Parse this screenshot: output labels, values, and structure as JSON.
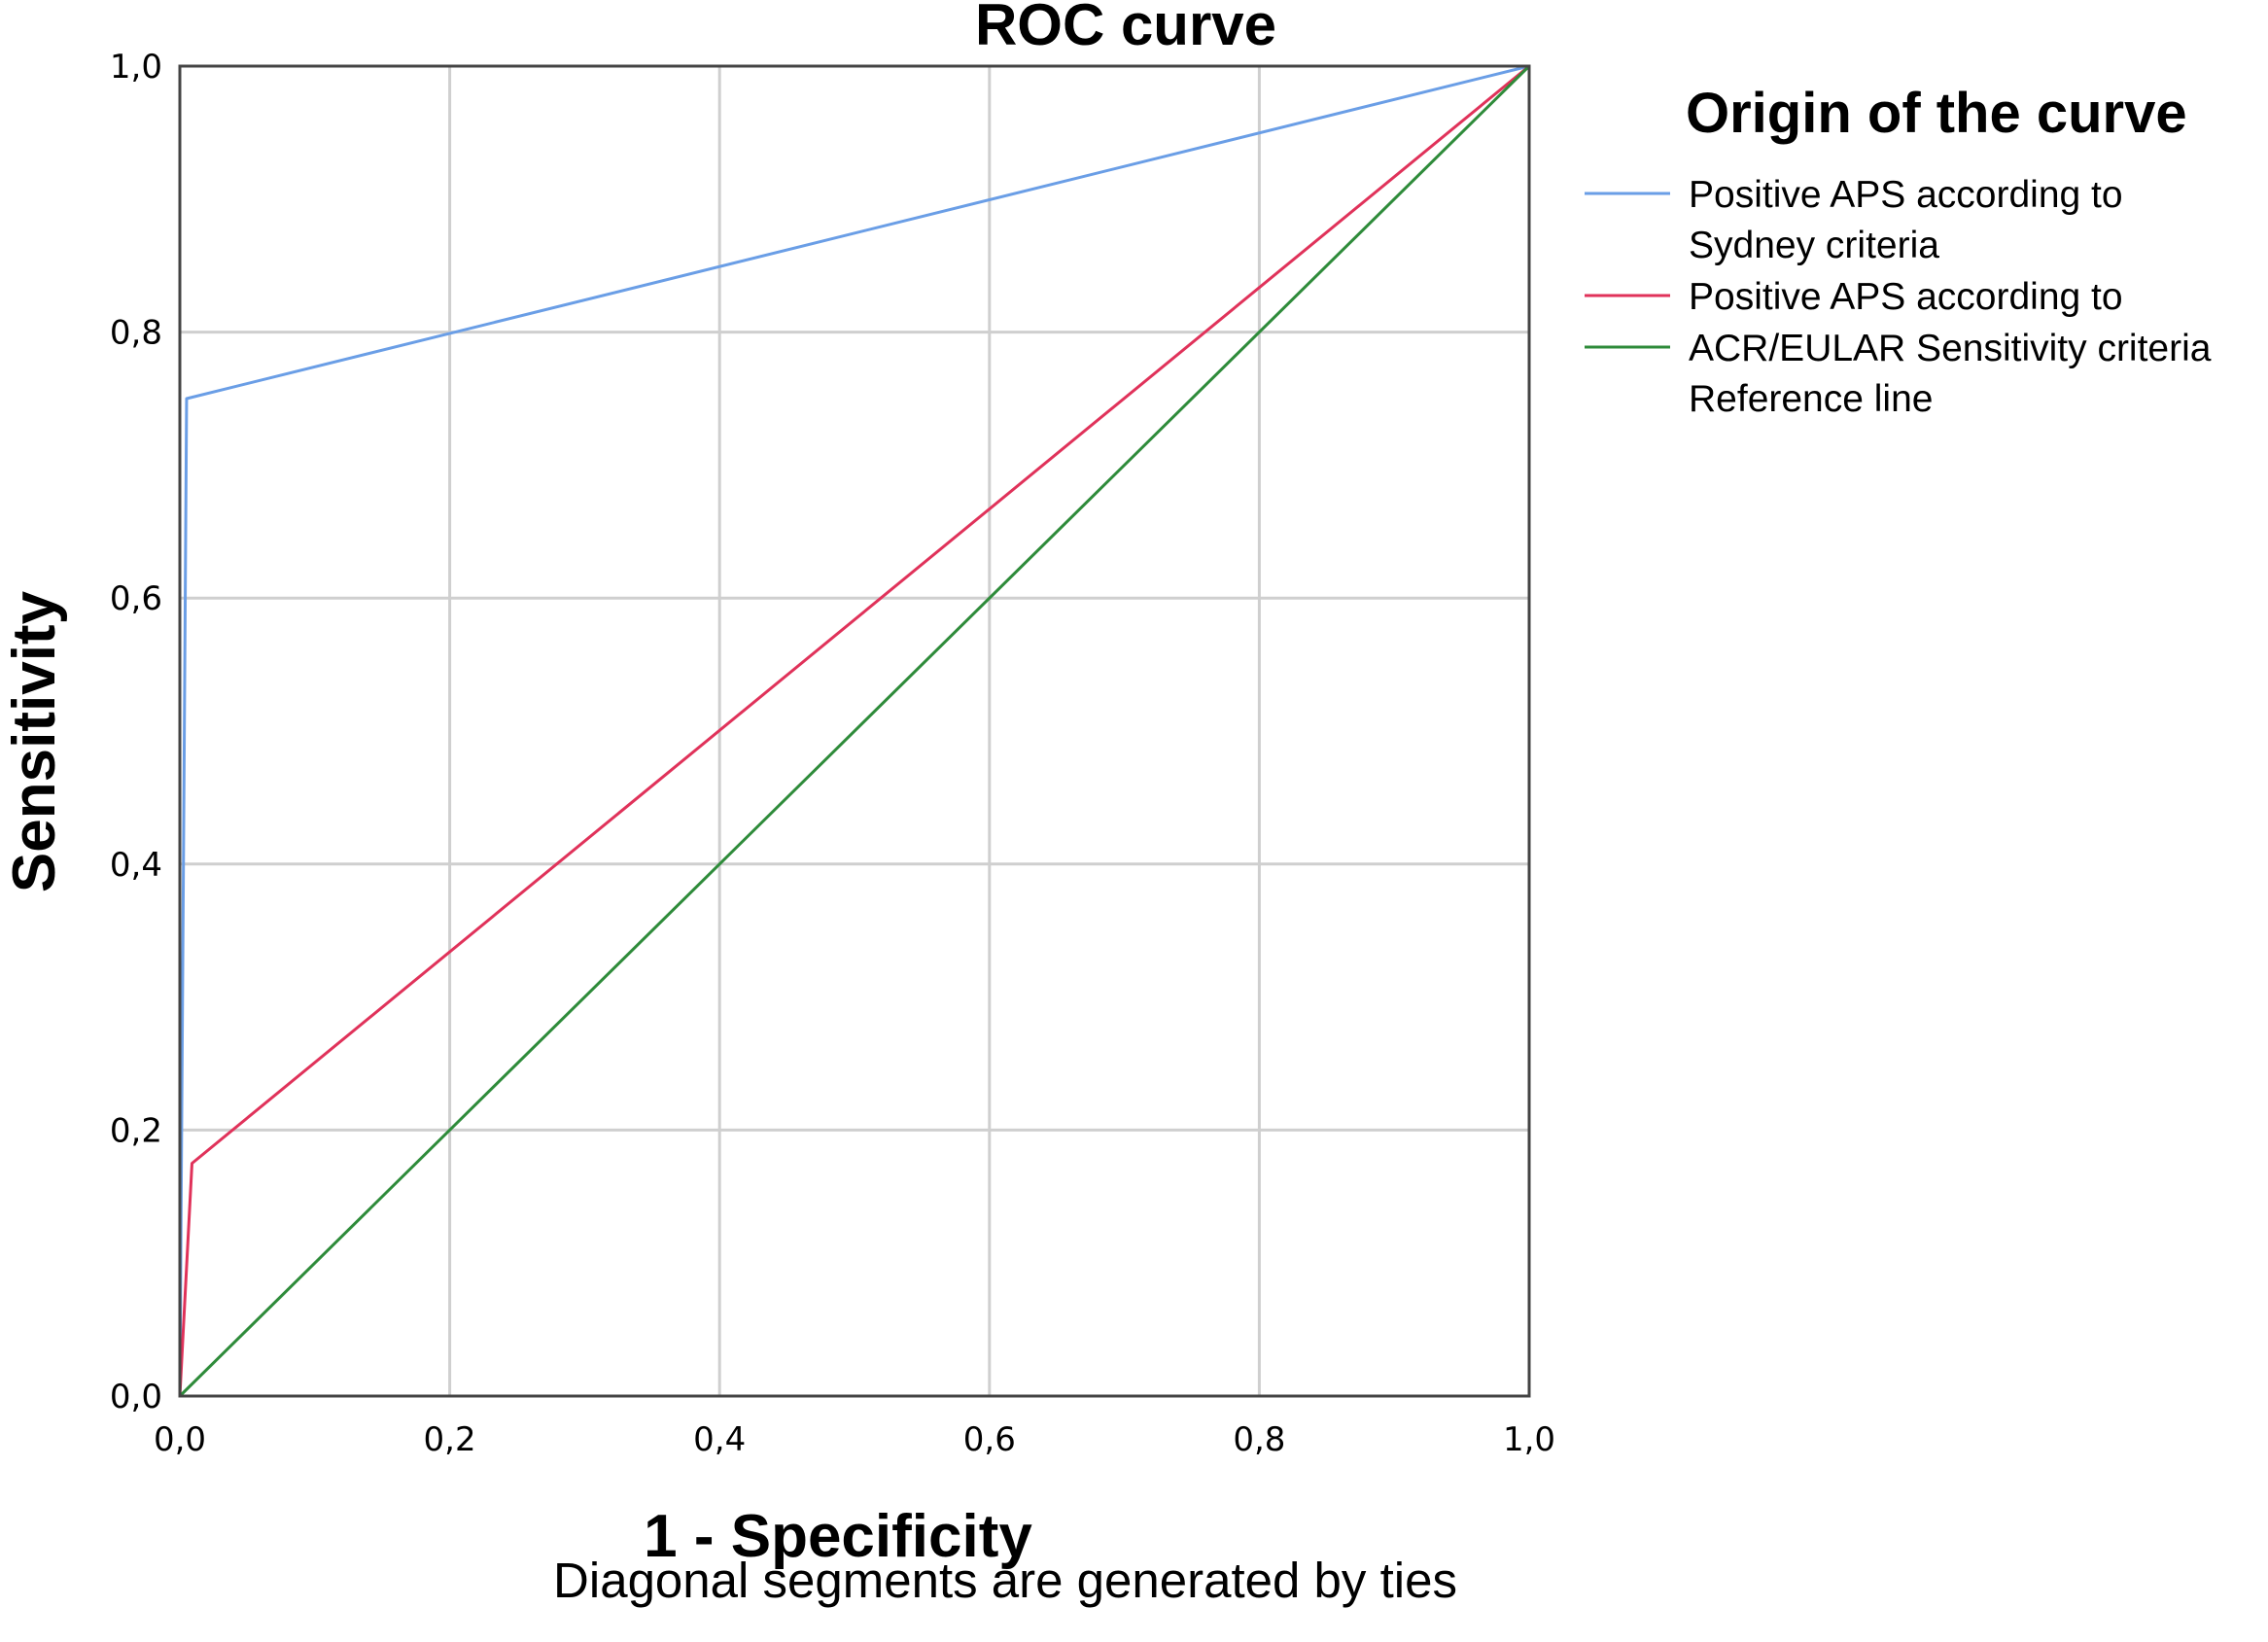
{
  "chart_data": {
    "type": "line",
    "title": "ROC curve",
    "xlabel": "1 - Specificity",
    "ylabel": "Sensitivity",
    "xlim": [
      0,
      1
    ],
    "ylim": [
      0,
      1
    ],
    "grid": true,
    "x_ticks": [
      "0,0",
      "0,2",
      "0,4",
      "0,6",
      "0,8",
      "1,0"
    ],
    "y_ticks": [
      "0,0",
      "0,2",
      "0,4",
      "0,6",
      "0,8",
      "1,0"
    ],
    "legend": {
      "title": "Origin of the curve",
      "placement": "right",
      "lines": [
        "Positive APS according to",
        "Sydney criteria",
        "Positive APS according to",
        "ACR/EULAR Sensitivity criteria",
        "Reference line"
      ]
    },
    "series": [
      {
        "color": "#6a9ee6",
        "points": [
          [
            0,
            0
          ],
          [
            0.005,
            0.75
          ],
          [
            1,
            1
          ]
        ]
      },
      {
        "color": "#e0325a",
        "points": [
          [
            0,
            0
          ],
          [
            0.009,
            0.175
          ],
          [
            1,
            1
          ]
        ]
      },
      {
        "color": "#2e8b3a",
        "points": [
          [
            0,
            0
          ],
          [
            1,
            1
          ]
        ]
      }
    ],
    "legend_colors": [
      "#6a9ee6",
      "#e0325a",
      "#2e8b3a"
    ],
    "annotation": "Diagonal segments are generated by ties"
  }
}
